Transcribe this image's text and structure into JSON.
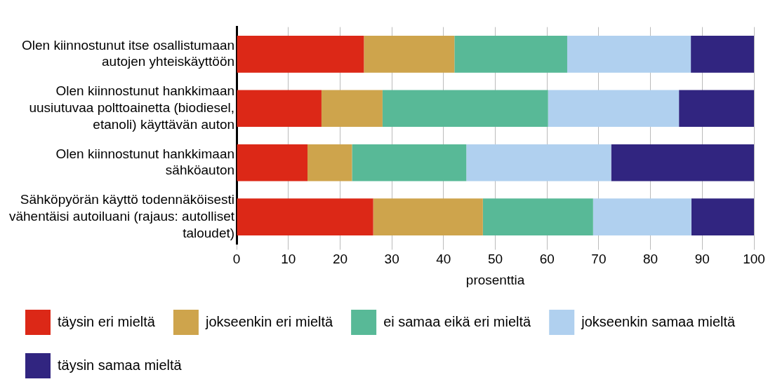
{
  "chart_data": {
    "type": "bar",
    "orientation": "horizontal",
    "stacked": true,
    "categories": [
      "Olen kiinnostunut itse osallistumaan autojen yhteiskäyttöön",
      "Olen kiinnostunut hankkimaan uusiutuvaa polttoainetta (biodiesel, etanoli) käyttävän auton",
      "Olen kiinnostunut hankkimaan sähköauton",
      "Sähköpyörän käyttö todennäköisesti vähentäisi autoiluani (rajaus: autolliset taloudet)"
    ],
    "series": [
      {
        "name": "täysin eri mieltä",
        "color": "#dc2817",
        "values": [
          24.6,
          16.4,
          13.7,
          26.4
        ]
      },
      {
        "name": "jokseenkin eri mieltä",
        "color": "#cea44c",
        "values": [
          17.5,
          11.8,
          8.6,
          21.2
        ]
      },
      {
        "name": "ei samaa eikä eri mieltä",
        "color": "#58b997",
        "values": [
          21.8,
          32.0,
          22.1,
          21.3
        ]
      },
      {
        "name": "jokseenkin samaa mieltä",
        "color": "#b0d0ef",
        "values": [
          23.9,
          25.3,
          28.0,
          19.0
        ]
      },
      {
        "name": "täysin samaa mieltä",
        "color": "#312580",
        "values": [
          12.2,
          14.5,
          27.6,
          12.1
        ]
      }
    ],
    "xlabel": "prosenttia",
    "xlim": [
      0,
      100
    ],
    "xticks": [
      0,
      10,
      20,
      30,
      40,
      50,
      60,
      70,
      80,
      90,
      100
    ],
    "grid": "x",
    "legend": "bottom"
  }
}
